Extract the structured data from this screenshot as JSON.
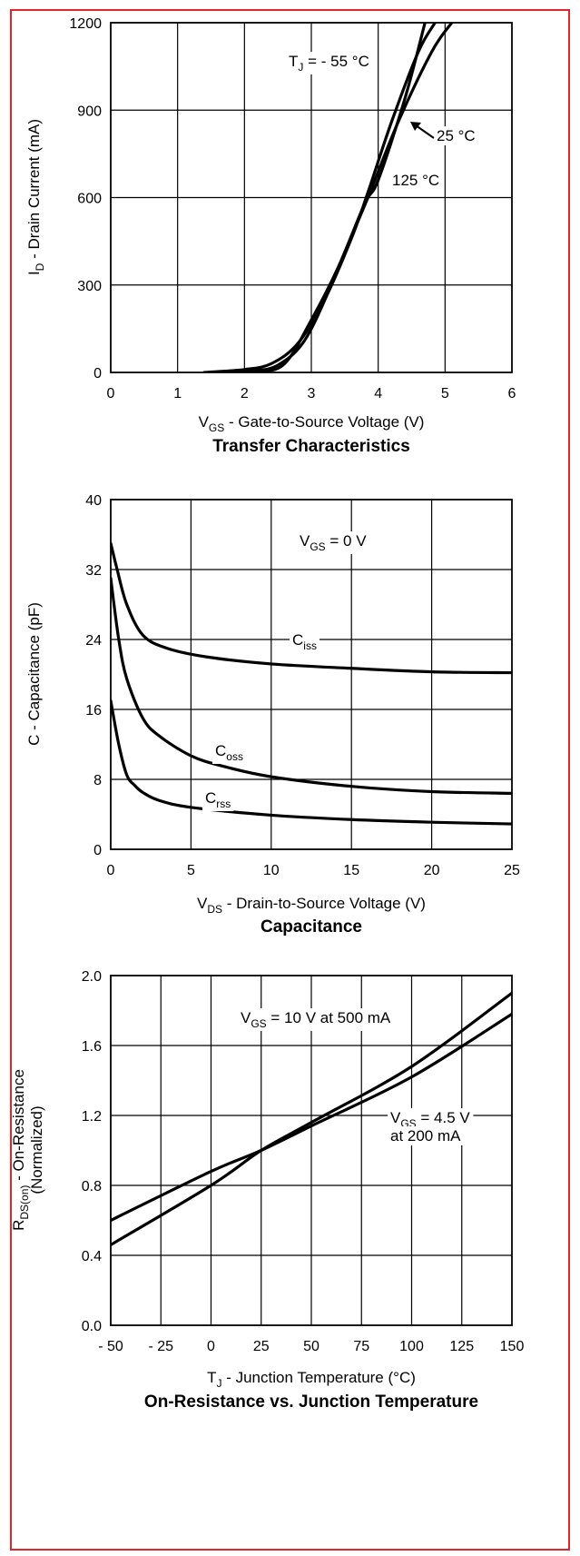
{
  "charts": [
    {
      "type": "line",
      "title": "Transfer Characteristics",
      "xlabel_main": "V",
      "xlabel_sub": "GS",
      "xlabel_rest": " - Gate-to-Source Voltage (V)",
      "ylabel_main": "I",
      "ylabel_sub": "D",
      "ylabel_rest": " - Drain Current (mA)",
      "xlim": [
        0,
        6
      ],
      "ylim": [
        0,
        1200
      ],
      "xticks": [
        "0",
        "1",
        "2",
        "3",
        "4",
        "5",
        "6"
      ],
      "yticks": [
        "0",
        "300",
        "600",
        "900",
        "1200"
      ],
      "annotations": [
        {
          "main": "T",
          "sub": "J",
          "rest": " = - 55 °C"
        },
        {
          "main": "25 °C",
          "sub": "",
          "rest": ""
        },
        {
          "main": "125 °C",
          "sub": "",
          "rest": ""
        }
      ],
      "series": [
        {
          "x": [
            1.4,
            2.0,
            2.4,
            2.8,
            3.2,
            3.6,
            3.85,
            4.2,
            4.6,
            4.85
          ],
          "y": [
            0,
            10,
            30,
            100,
            250,
            460,
            620,
            860,
            1100,
            1200
          ]
        },
        {
          "x": [
            1.5,
            2.1,
            2.5,
            2.9,
            3.3,
            3.7,
            3.9,
            4.3,
            4.8,
            5.1
          ],
          "y": [
            0,
            5,
            25,
            110,
            300,
            520,
            630,
            860,
            1100,
            1200
          ]
        },
        {
          "x": [
            1.6,
            2.2,
            2.6,
            3.0,
            3.4,
            3.8,
            4.0,
            4.4,
            4.7
          ],
          "y": [
            0,
            4,
            30,
            180,
            360,
            580,
            660,
            940,
            1200
          ]
        }
      ]
    },
    {
      "type": "line",
      "title": "Capacitance",
      "xlabel_main": "V",
      "xlabel_sub": "DS",
      "xlabel_rest": "  - Drain-to-Source Voltage (V)",
      "ylabel_main": "C - Capacitance (pF)",
      "ylabel_sub": "",
      "ylabel_rest": "",
      "xlim": [
        0,
        25
      ],
      "ylim": [
        0,
        40
      ],
      "xticks": [
        "0",
        "5",
        "10",
        "15",
        "20",
        "25"
      ],
      "yticks": [
        "0",
        "8",
        "16",
        "24",
        "32",
        "40"
      ],
      "annotations": [
        {
          "main": "V",
          "sub": "GS",
          "rest": " = 0 V"
        },
        {
          "main": "C",
          "sub": "iss",
          "rest": ""
        },
        {
          "main": "C",
          "sub": "oss",
          "rest": ""
        },
        {
          "main": "C",
          "sub": "rss",
          "rest": ""
        }
      ],
      "series": [
        {
          "name": "Ciss",
          "x": [
            0,
            0.4,
            1,
            2,
            3.5,
            6,
            10,
            15,
            20,
            25
          ],
          "y": [
            35,
            32,
            28,
            24.5,
            23,
            22,
            21.2,
            20.7,
            20.3,
            20.2
          ]
        },
        {
          "name": "Coss",
          "x": [
            0,
            0.5,
            1,
            2,
            3,
            5,
            7,
            10,
            15,
            20,
            25
          ],
          "y": [
            31,
            24,
            19.5,
            15,
            13,
            10.7,
            9.5,
            8.3,
            7.2,
            6.6,
            6.4
          ]
        },
        {
          "name": "Crss",
          "x": [
            0,
            0.5,
            1,
            1.5,
            2,
            3,
            5,
            10,
            15,
            20,
            25
          ],
          "y": [
            17,
            12,
            8.5,
            7.3,
            6.5,
            5.6,
            4.8,
            3.9,
            3.4,
            3.1,
            2.9
          ]
        }
      ]
    },
    {
      "type": "line",
      "title": "On-Resistance vs. Junction Temperature",
      "xlabel_main": "T",
      "xlabel_sub": "J",
      "xlabel_rest": " - Junction Temperature (°C)",
      "ylabel_main": "R",
      "ylabel_sub": "DS(on)",
      "ylabel_rest": " - On-Resistance",
      "ylabel_line2": "(Normalized)",
      "xlim": [
        -50,
        150
      ],
      "ylim": [
        0.0,
        2.0
      ],
      "xticks": [
        "- 50",
        "- 25",
        "0",
        "25",
        "50",
        "75",
        "100",
        "125",
        "150"
      ],
      "yticks": [
        "0.0",
        "0.4",
        "0.8",
        "1.2",
        "1.6",
        "2.0"
      ],
      "annotations": [
        {
          "main": "V",
          "sub": "GS",
          "rest": " = 10 V at 500 mA"
        },
        {
          "main": "V",
          "sub": "GS",
          "rest": " = 4.5 V"
        },
        {
          "main": "at 200 mA",
          "sub": "",
          "rest": ""
        }
      ],
      "series": [
        {
          "x": [
            -50,
            0,
            25,
            50,
            100,
            150
          ],
          "y": [
            0.46,
            0.8,
            1.0,
            1.16,
            1.48,
            1.9
          ]
        },
        {
          "x": [
            -50,
            0,
            25,
            50,
            100,
            150
          ],
          "y": [
            0.6,
            0.88,
            1.0,
            1.14,
            1.42,
            1.78
          ]
        }
      ]
    }
  ]
}
